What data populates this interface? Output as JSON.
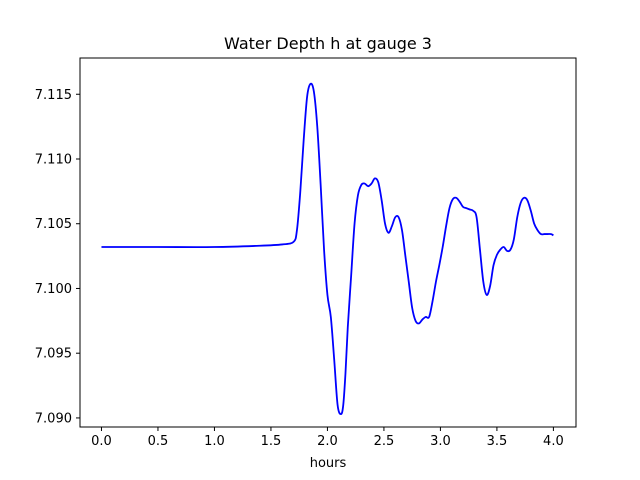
{
  "chart_data": {
    "type": "line",
    "title": "Water Depth h at gauge 3",
    "xlabel": "hours",
    "ylabel": "",
    "xlim": [
      -0.19,
      4.2
    ],
    "ylim": [
      7.0893,
      7.1178
    ],
    "grid": false,
    "legend": "none",
    "x_ticks": [
      0.0,
      0.5,
      1.0,
      1.5,
      2.0,
      2.5,
      3.0,
      3.5,
      4.0
    ],
    "x_tick_labels": [
      "0.0",
      "0.5",
      "1.0",
      "1.5",
      "2.0",
      "2.5",
      "3.0",
      "3.5",
      "4.0"
    ],
    "y_ticks": [
      7.09,
      7.095,
      7.1,
      7.105,
      7.11,
      7.115
    ],
    "y_tick_labels": [
      "7.090",
      "7.095",
      "7.100",
      "7.105",
      "7.110",
      "7.115"
    ],
    "series": [
      {
        "color": "#0000ff",
        "x": [
          0.0,
          0.5,
          1.0,
          1.4,
          1.6,
          1.7,
          1.73,
          1.76,
          1.79,
          1.82,
          1.85,
          1.88,
          1.91,
          1.94,
          1.97,
          2.0,
          2.03,
          2.06,
          2.09,
          2.12,
          2.14,
          2.16,
          2.18,
          2.21,
          2.24,
          2.27,
          2.3,
          2.33,
          2.36,
          2.39,
          2.42,
          2.45,
          2.48,
          2.51,
          2.54,
          2.57,
          2.6,
          2.63,
          2.66,
          2.69,
          2.72,
          2.75,
          2.78,
          2.81,
          2.84,
          2.87,
          2.9,
          2.93,
          2.96,
          2.99,
          3.02,
          3.05,
          3.08,
          3.11,
          3.14,
          3.17,
          3.2,
          3.23,
          3.26,
          3.29,
          3.32,
          3.35,
          3.38,
          3.41,
          3.44,
          3.47,
          3.5,
          3.53,
          3.56,
          3.59,
          3.62,
          3.65,
          3.68,
          3.71,
          3.74,
          3.77,
          3.8,
          3.83,
          3.86,
          3.89,
          3.92,
          3.95,
          3.98,
          4.0
        ],
        "y": [
          7.1032,
          7.1032,
          7.1032,
          7.1033,
          7.1034,
          7.1036,
          7.1045,
          7.1075,
          7.1115,
          7.1148,
          7.1158,
          7.1152,
          7.1125,
          7.108,
          7.103,
          7.0995,
          7.0978,
          7.0945,
          7.091,
          7.0903,
          7.091,
          7.0935,
          7.097,
          7.101,
          7.105,
          7.1072,
          7.108,
          7.1081,
          7.1079,
          7.1081,
          7.1085,
          7.1082,
          7.1068,
          7.105,
          7.1043,
          7.1048,
          7.1055,
          7.1055,
          7.1045,
          7.1025,
          7.1005,
          7.0985,
          7.0975,
          7.0973,
          7.0976,
          7.0978,
          7.0978,
          7.099,
          7.1005,
          7.1018,
          7.1032,
          7.1048,
          7.1062,
          7.1069,
          7.107,
          7.1067,
          7.1063,
          7.1062,
          7.1061,
          7.106,
          7.1055,
          7.103,
          7.1005,
          7.0995,
          7.1002,
          7.1018,
          7.1026,
          7.103,
          7.1032,
          7.1029,
          7.103,
          7.1038,
          7.1055,
          7.1066,
          7.107,
          7.1068,
          7.106,
          7.105,
          7.1045,
          7.1042,
          7.1042,
          7.1042,
          7.1042,
          7.1041
        ]
      }
    ]
  }
}
